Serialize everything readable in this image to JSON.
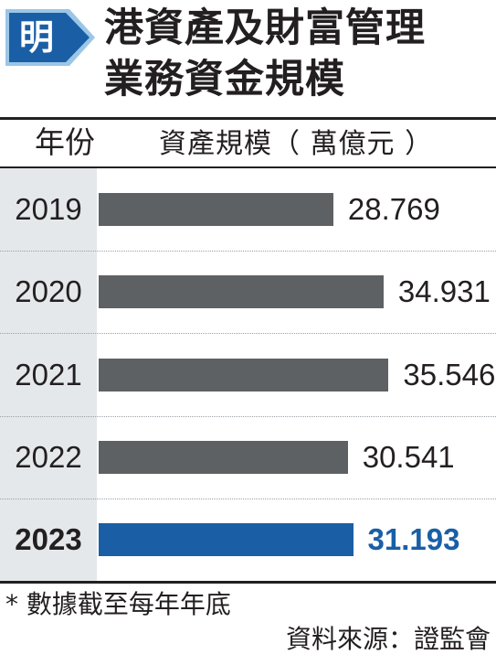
{
  "brand": {
    "logo_char": "明",
    "logo_color": "#1a5fa6"
  },
  "title": {
    "line1": "港資產及財富管理",
    "line2": "業務資金規模"
  },
  "header": {
    "year_label": "年份",
    "assets_label": "資產規模（ 萬億元 ）"
  },
  "chart_data": {
    "type": "bar",
    "orientation": "horizontal",
    "title": "港資產及財富管理業務資金規模",
    "xlabel": "資產規模（ 萬億元 ）",
    "ylabel": "年份",
    "categories": [
      "2019",
      "2020",
      "2021",
      "2022",
      "2023"
    ],
    "values": [
      28.769,
      34.931,
      35.546,
      30.541,
      31.193
    ],
    "value_labels": [
      "28.769",
      "34.931",
      "35.546",
      "30.541",
      "31.193"
    ],
    "xlim": [
      0,
      36
    ],
    "highlight_index": 4,
    "colors": {
      "bar": "#5e6163",
      "highlight": "#1a5fa6"
    },
    "grid": false
  },
  "footer": {
    "note": "* 數據截至每年年底",
    "source": "資料來源：證監會"
  }
}
